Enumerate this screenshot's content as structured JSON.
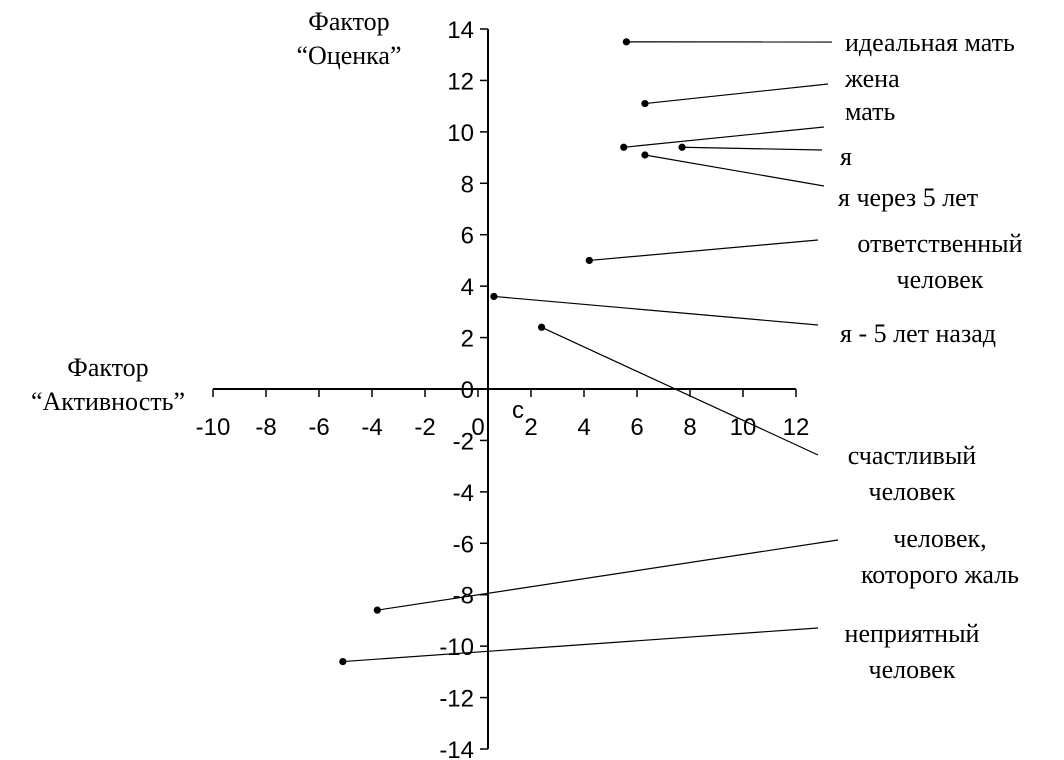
{
  "chart_data": {
    "type": "scatter",
    "x_axis_title": [
      "Фактор",
      "“Активность”"
    ],
    "y_axis_title": [
      "Фактор",
      "“Оценка”"
    ],
    "xlim": [
      -10,
      12
    ],
    "ylim": [
      -14,
      14
    ],
    "x_ticks": [
      "-10",
      "-8",
      "-6",
      "-4",
      "-2",
      "0",
      "2",
      "4",
      "6",
      "8",
      "10",
      "12"
    ],
    "y_ticks": [
      "14",
      "12",
      "10",
      "8",
      "6",
      "4",
      "2",
      "0",
      "-2",
      "-4",
      "-6",
      "-8",
      "-10",
      "-12",
      "-14"
    ],
    "stray_label": "c",
    "grid": false,
    "points": [
      {
        "label": [
          "идеальная мать"
        ],
        "x": 5.6,
        "y": 13.5
      },
      {
        "label": [
          "жена"
        ],
        "x": 6.3,
        "y": 11.1
      },
      {
        "label": [
          "мать"
        ],
        "x": 5.5,
        "y": 9.4
      },
      {
        "label": [
          "я"
        ],
        "x": 7.7,
        "y": 9.4
      },
      {
        "label": [
          "я через 5 лет"
        ],
        "x": 6.3,
        "y": 9.1
      },
      {
        "label": [
          "ответственный",
          "человек"
        ],
        "x": 4.2,
        "y": 5.0
      },
      {
        "label": [
          "я - 5 лет назад"
        ],
        "x": 0.6,
        "y": 3.6
      },
      {
        "label": [
          "счастливый",
          "человек"
        ],
        "x": 2.4,
        "y": 2.4
      },
      {
        "label": [
          "человек,",
          "которого жаль"
        ],
        "x": -3.8,
        "y": -8.6
      },
      {
        "label": [
          "неприятный",
          "человек"
        ],
        "x": -5.1,
        "y": -10.6
      }
    ]
  }
}
